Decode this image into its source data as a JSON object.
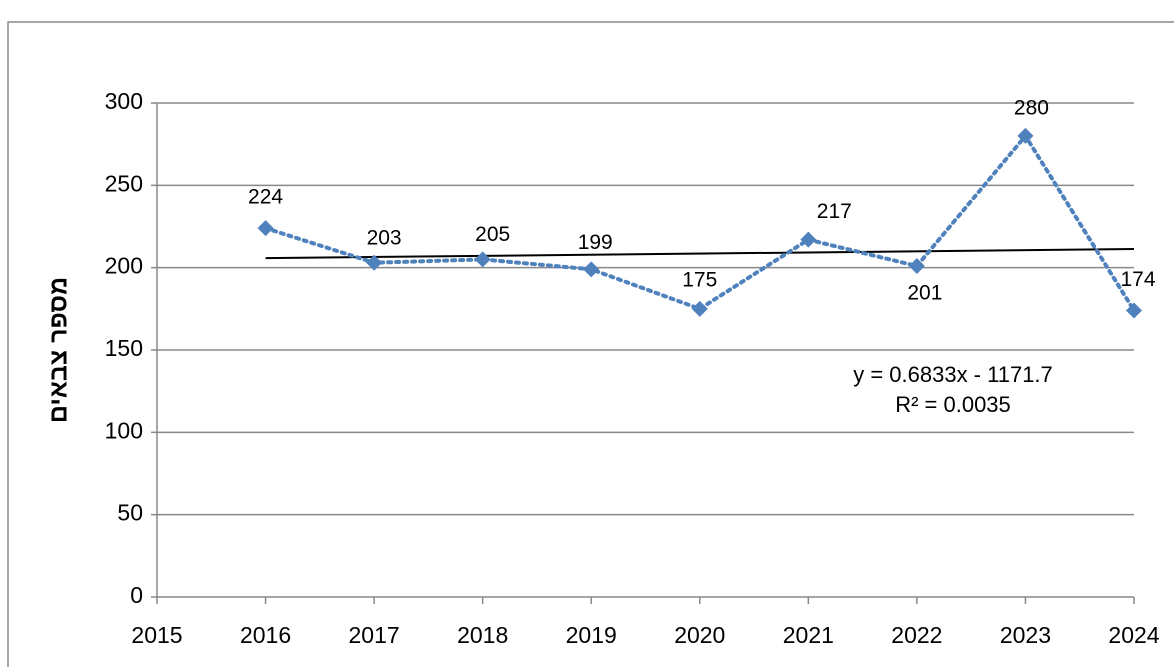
{
  "chart_data": {
    "type": "line",
    "y_label": "מספר צבאים",
    "x": [
      2016,
      2017,
      2018,
      2019,
      2020,
      2021,
      2022,
      2023,
      2024
    ],
    "series": [
      {
        "name": "צבאים",
        "color": "#4f81bd",
        "values": [
          224,
          203,
          205,
          199,
          175,
          217,
          201,
          280,
          174
        ]
      }
    ],
    "trendline": {
      "x": [
        2016,
        2024
      ],
      "values": [
        205.8,
        211.3
      ],
      "color": "#000000"
    },
    "annotations": [
      "y = 0.6833x - 1171.7",
      "R² = 0.0035"
    ],
    "xlim": [
      2015,
      2024
    ],
    "xticks": [
      2015,
      2016,
      2017,
      2018,
      2019,
      2020,
      2021,
      2022,
      2023,
      2024
    ],
    "ylim": [
      0,
      300
    ],
    "yticks": [
      0,
      50,
      100,
      150,
      200,
      250,
      300
    ],
    "grid": true
  }
}
